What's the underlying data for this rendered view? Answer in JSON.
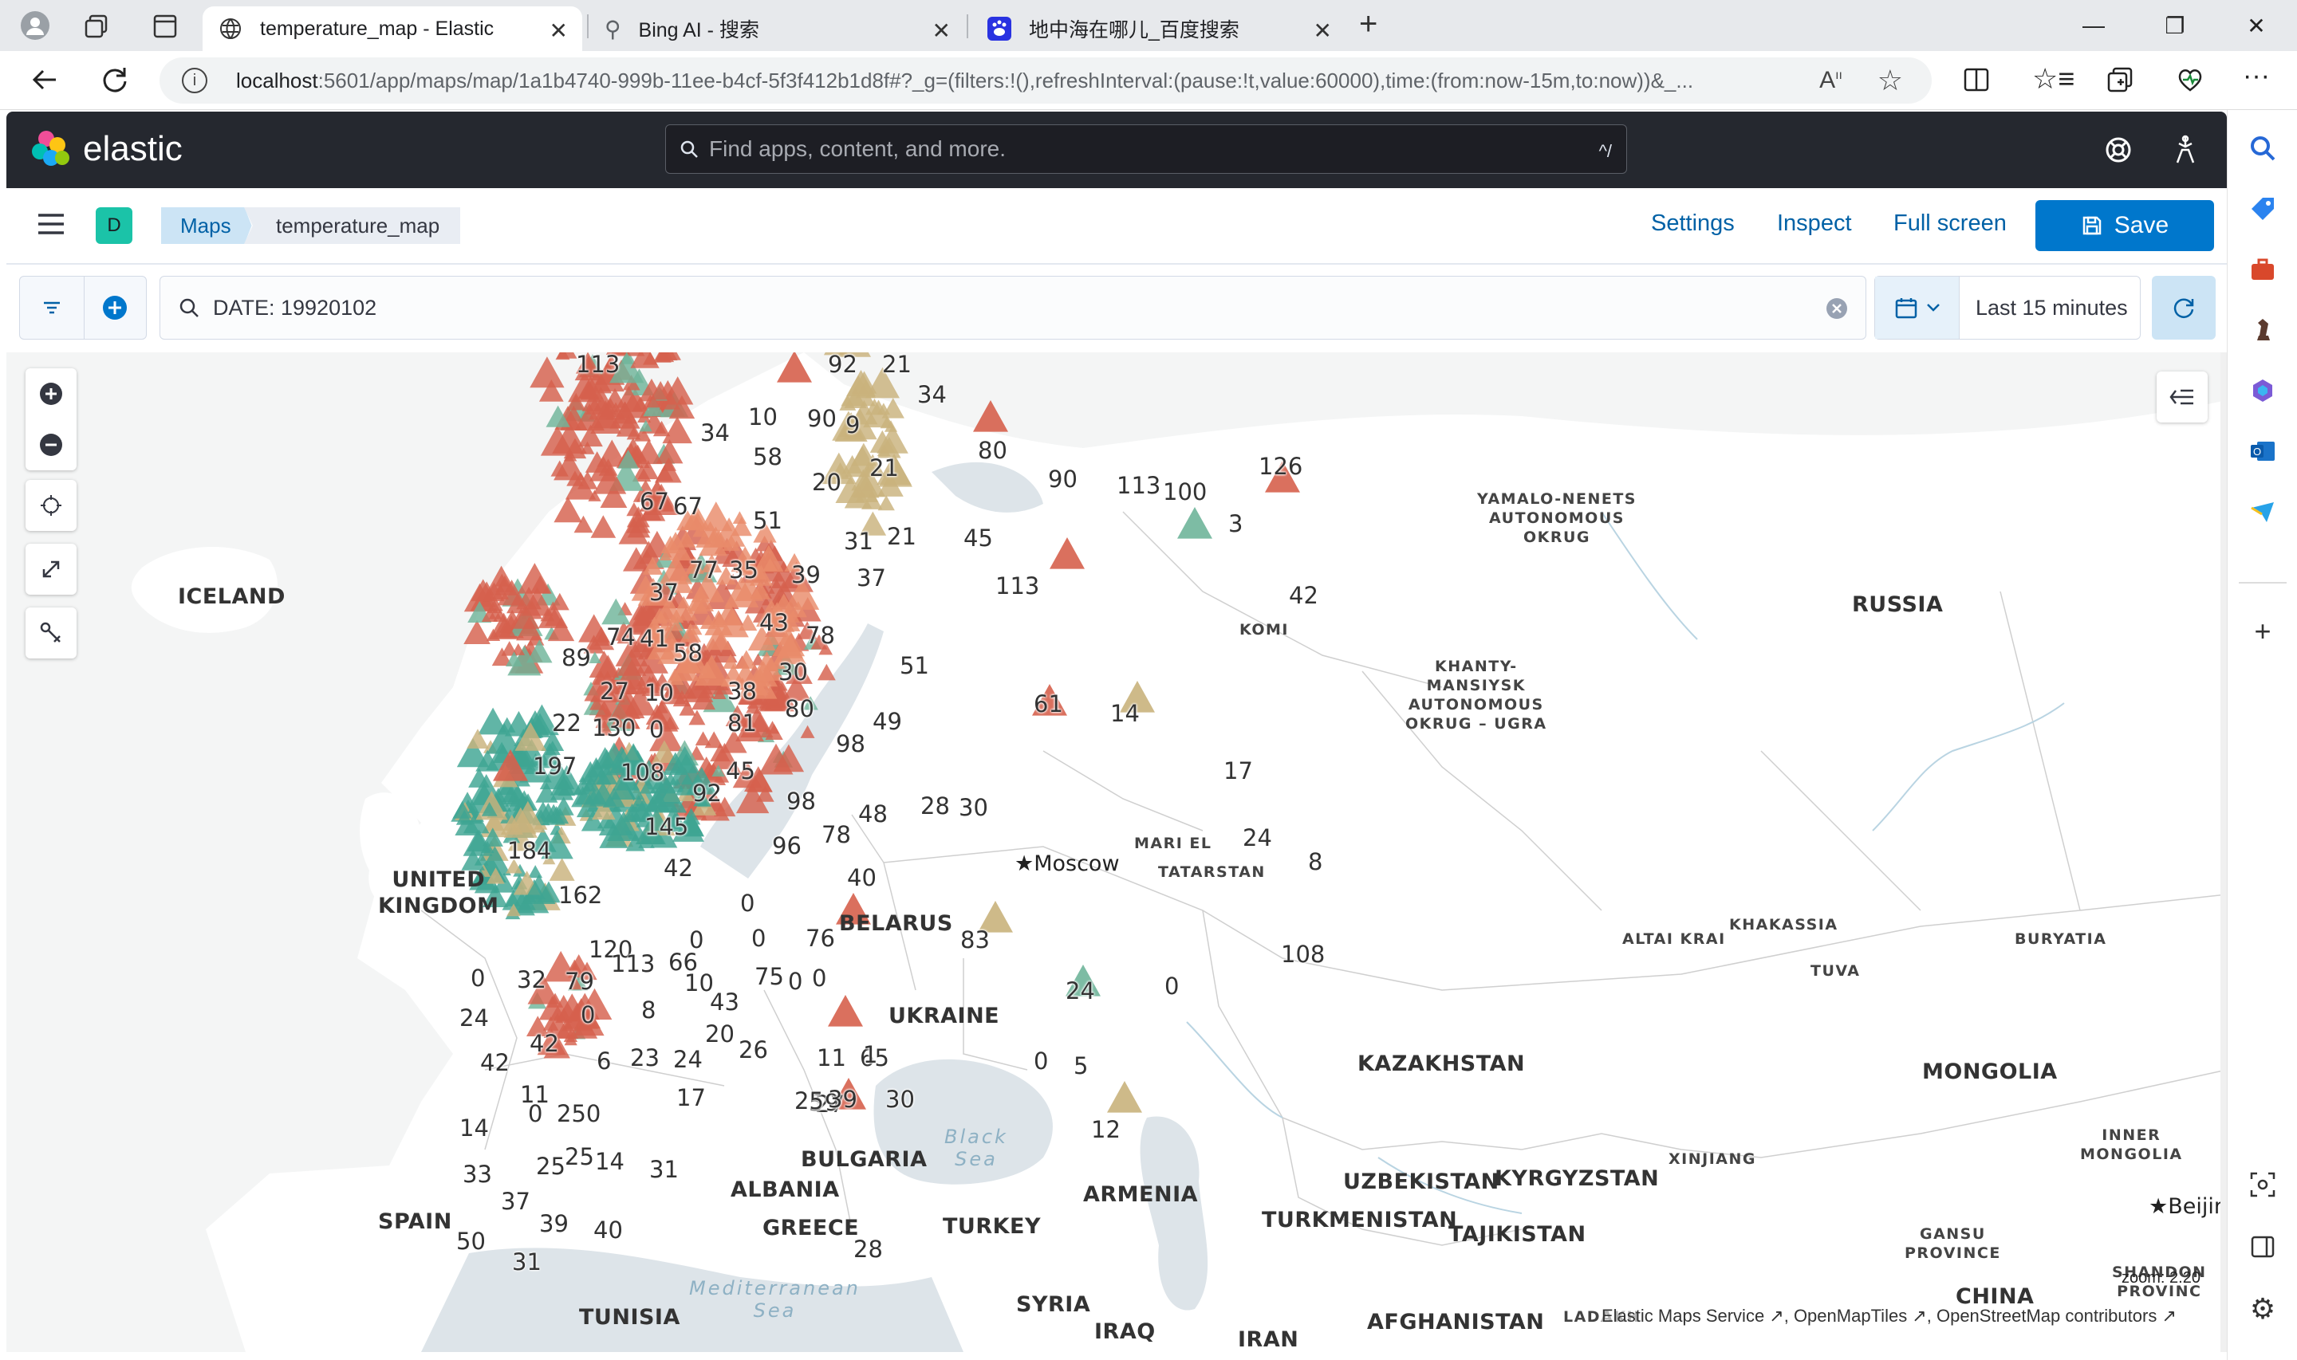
{
  "browser": {
    "tabs": [
      {
        "title": "temperature_map - Elastic",
        "active": true
      },
      {
        "title": "Bing AI - 搜索"
      },
      {
        "title": "地中海在哪儿_百度搜索"
      }
    ],
    "url_host": "localhost",
    "url_rest": ":5601/app/maps/map/1a1b4740-999b-11ee-b4cf-5f3f412b1d8f#?_g=(filters:!(),refreshInterval:(pause:!t,value:60000),time:(from:now-15m,to:now))&_..."
  },
  "kibana": {
    "brand": "elastic",
    "search_placeholder": "Find apps, content, and more.",
    "search_shortcut": "^/",
    "space_letter": "D",
    "breadcrumbs": [
      "Maps",
      "temperature_map"
    ],
    "actions": [
      "Settings",
      "Inspect",
      "Full screen"
    ],
    "save_label": "Save",
    "query": "DATE: 19920102",
    "time_range": "Last 15 minutes"
  },
  "map": {
    "countries": [
      "ICELAND",
      "UNITED\nKINGDOM",
      "RUSSIA",
      "BELARUS",
      "UKRAINE",
      "KAZAKHSTAN",
      "MONGOLIA",
      "SPAIN",
      "BULGARIA",
      "ALBANIA",
      "GREECE",
      "TURKEY",
      "ARMENIA",
      "UZBEKISTAN",
      "KYRGYZSTAN",
      "TURKMENISTAN",
      "TAJIKISTAN",
      "TUNISIA",
      "SYRIA",
      "IRAQ",
      "IRAN",
      "AFGHANISTAN",
      "CHINA"
    ],
    "regions": [
      "YAMALO-NENETS\nAUTONOMOUS\nOKRUG",
      "KOMI",
      "KHANTY-\nMANSIYSK\nAUTONOMOUS\nOKRUG – UGRA",
      "MARI EL",
      "TATARSTAN",
      "ALTAI KRAI",
      "KHAKASSIA",
      "TUVA",
      "BURYATIA",
      "XINJIANG",
      "INNER\nMONGOLIA",
      "GANSU\nPROVINCE",
      "SHANDON\nPROVINC",
      "LADAKH"
    ],
    "seas": [
      "Black\nSea",
      "Mediterranean\nSea"
    ],
    "cities": [
      "★Moscow",
      "★Beijin"
    ],
    "point_labels": [
      "113",
      "92",
      "21",
      "34",
      "80",
      "34",
      "10",
      "90",
      "9",
      "58",
      "20",
      "21",
      "90",
      "113",
      "100",
      "126",
      "3",
      "67",
      "67",
      "31",
      "21",
      "45",
      "51",
      "77",
      "35",
      "39",
      "37",
      "113",
      "42",
      "37",
      "43",
      "78",
      "74",
      "41",
      "58",
      "51",
      "89",
      "30",
      "38",
      "27",
      "10",
      "61",
      "14",
      "80",
      "49",
      "22",
      "130",
      "0",
      "81",
      "98",
      "197",
      "108",
      "45",
      "92",
      "98",
      "48",
      "28",
      "30",
      "17",
      "145",
      "24",
      "184",
      "96",
      "78",
      "8",
      "42",
      "40",
      "162",
      "0",
      "0",
      "0",
      "76",
      "120",
      "83",
      "0",
      "32",
      "79",
      "113",
      "66",
      "108",
      "75",
      "0",
      "0",
      "0",
      "10",
      "24",
      "43",
      "24",
      "0",
      "8",
      "42",
      "20",
      "26",
      "42",
      "6",
      "23",
      "24",
      "11",
      "65",
      "0",
      "1",
      "5",
      "17",
      "27",
      "11",
      "5",
      "9",
      "0",
      "250",
      "25",
      "39",
      "30",
      "14",
      "12",
      "25",
      "25",
      "14",
      "31",
      "33",
      "37",
      "39",
      "40",
      "50",
      "28",
      "31"
    ],
    "attribution": "Elastic Maps Service ↗, OpenMapTiles ↗, OpenStreetMap contributors ↗",
    "zoom_label": "zoom: 2.20"
  },
  "colors": {
    "hot": "#d6604d",
    "warm": "#e98b6a",
    "mild": "#c9b27c",
    "cool": "#6fb59a",
    "cold": "#3ea593",
    "accent": "#0077cc"
  }
}
